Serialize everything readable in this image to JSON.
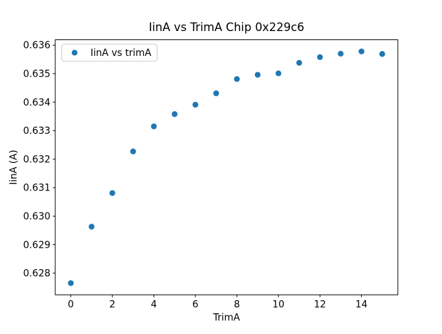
{
  "chart_data": {
    "type": "scatter",
    "title": "IinA vs TrimA Chip 0x229c6",
    "xlabel": "TrimA",
    "ylabel": "IinA (A)",
    "grid": false,
    "marker": {
      "shape": "circle",
      "color": "#1f77b4"
    },
    "series": [
      {
        "name": "IinA vs trimA",
        "x": [
          0,
          1,
          2,
          3,
          4,
          5,
          6,
          7,
          8,
          9,
          10,
          11,
          12,
          13,
          14,
          15
        ],
        "y": [
          0.62765,
          0.62963,
          0.63081,
          0.63227,
          0.63315,
          0.63358,
          0.63391,
          0.63431,
          0.63481,
          0.63496,
          0.63501,
          0.63538,
          0.63558,
          0.6357,
          0.63578,
          0.63569
        ]
      }
    ],
    "xlim": [
      -0.75,
      15.75
    ],
    "ylim": [
      0.62724,
      0.63619
    ],
    "xticks": {
      "values": [
        0,
        2,
        4,
        6,
        8,
        10,
        12,
        14
      ],
      "labels": [
        "0",
        "2",
        "4",
        "6",
        "8",
        "10",
        "12",
        "14"
      ]
    },
    "yticks": {
      "values": [
        0.628,
        0.629,
        0.63,
        0.631,
        0.632,
        0.633,
        0.634,
        0.635,
        0.636
      ],
      "labels": [
        "0.628",
        "0.629",
        "0.630",
        "0.631",
        "0.632",
        "0.633",
        "0.634",
        "0.635",
        "0.636"
      ]
    },
    "legend": {
      "position": "upper-left",
      "entries": [
        "IinA vs trimA"
      ]
    }
  },
  "colors": {
    "marker": "#1f77b4",
    "axes": "#000000",
    "text": "#000000",
    "legend_border": "#cccccc",
    "background": "#ffffff"
  }
}
